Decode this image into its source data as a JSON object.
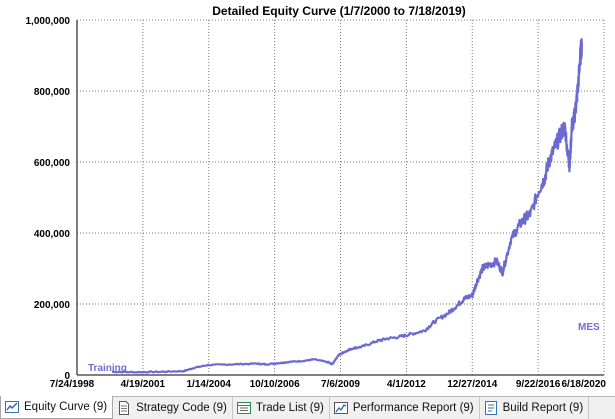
{
  "chart_data": {
    "type": "line",
    "title": "Detailed Equity Curve (1/7/2000 to 7/18/2019)",
    "x_ticks": [
      "7/24/1998",
      "4/19/2001",
      "1/14/2004",
      "10/10/2006",
      "7/6/2009",
      "4/1/2012",
      "12/27/2014",
      "9/22/2016",
      "6/18/2020"
    ],
    "y_ticks": [
      "0",
      "200,000",
      "400,000",
      "600,000",
      "800,000",
      "1,000,000"
    ],
    "ylim": [
      0,
      1000000
    ],
    "grid": true,
    "line_color": "#6b6bcf",
    "series": [
      {
        "name": "",
        "x": [
          "2000-01-07",
          "2001-01-01",
          "2002-01-01",
          "2003-01-01",
          "2003-06-01",
          "2004-01-01",
          "2005-01-01",
          "2006-01-01",
          "2006-06-01",
          "2007-01-01",
          "2007-06-01",
          "2008-01-01",
          "2008-06-01",
          "2009-01-01",
          "2009-03-01",
          "2009-06-01",
          "2009-09-01",
          "2010-01-01",
          "2010-06-01",
          "2011-01-01",
          "2011-06-01",
          "2012-01-01",
          "2012-06-01",
          "2013-01-01",
          "2013-06-01",
          "2014-01-01",
          "2014-06-01",
          "2014-09-01",
          "2015-01-01",
          "2015-03-01",
          "2015-06-01",
          "2015-09-01",
          "2016-01-01",
          "2016-04-01",
          "2016-08-01",
          "2016-12-01",
          "2017-03-01",
          "2017-06-01",
          "2017-10-01",
          "2018-01-01",
          "2018-03-01",
          "2018-06-01",
          "2018-09-01",
          "2018-11-01",
          "2018-12-24",
          "2019-01-15",
          "2019-02-15",
          "2019-03-20",
          "2019-04-20",
          "2019-05-25",
          "2019-06-15",
          "2019-07-18"
        ],
        "y": [
          9000,
          8000,
          9000,
          11000,
          20000,
          28000,
          30000,
          32000,
          30000,
          34000,
          37000,
          40000,
          44000,
          36000,
          30000,
          55000,
          65000,
          75000,
          80000,
          95000,
          102000,
          108000,
          115000,
          125000,
          150000,
          175000,
          200000,
          215000,
          225000,
          260000,
          300000,
          310000,
          320000,
          290000,
          380000,
          420000,
          440000,
          455000,
          520000,
          555000,
          600000,
          640000,
          680000,
          700000,
          610000,
          590000,
          700000,
          720000,
          760000,
          820000,
          880000,
          935000
        ]
      }
    ],
    "inline_labels": {
      "start": "Training",
      "end": "MES"
    }
  },
  "tabs": [
    {
      "label": "Equity Curve (9)",
      "icon": "equity-chart-icon",
      "active": true
    },
    {
      "label": "Strategy Code (9)",
      "icon": "document-icon",
      "active": false
    },
    {
      "label": "Trade List (9)",
      "icon": "list-icon",
      "active": false
    },
    {
      "label": "Performance Report (9)",
      "icon": "performance-icon",
      "active": false
    },
    {
      "label": "Build Report (9)",
      "icon": "report-icon",
      "active": false
    }
  ]
}
